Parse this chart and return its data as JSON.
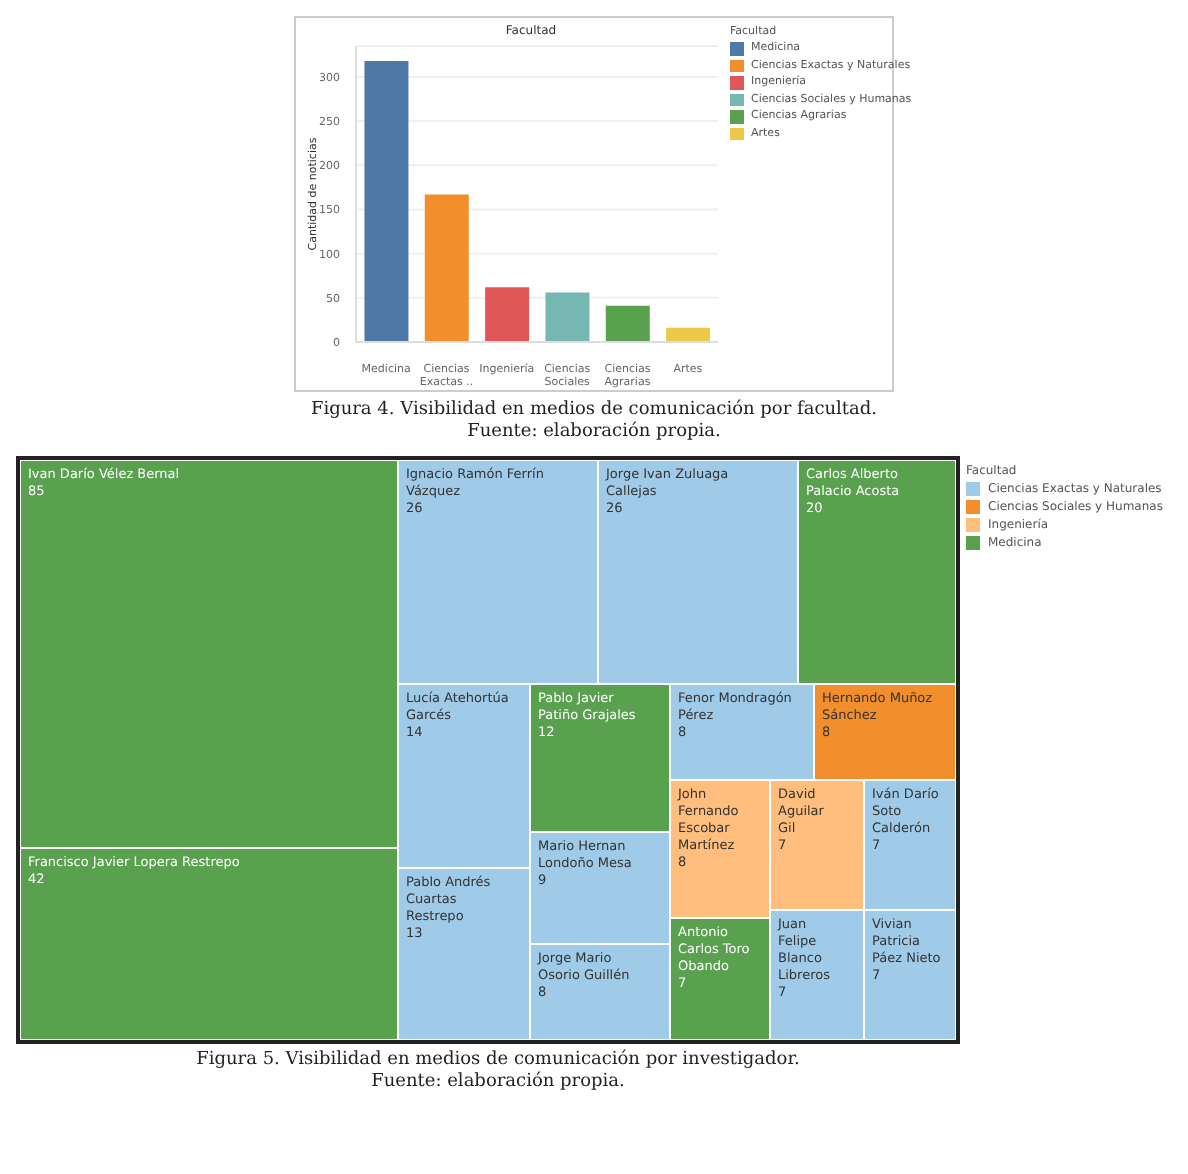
{
  "chart_data": [
    {
      "type": "bar",
      "title": "Facultad",
      "ylabel": "Cantidad de noticias",
      "legend_title": "Facultad",
      "legend": "right",
      "stacked": true,
      "grid": "y",
      "categories": [
        "Medicina",
        "Ciencias Exactas ..",
        "Ingeniería",
        "Ciencias Sociales ..",
        "Ciencias Agrarias",
        "Artes"
      ],
      "series": [
        {
          "name": "Medicina",
          "color": "#4e79a7",
          "values": [
            318,
            null,
            null,
            null,
            null,
            null
          ]
        },
        {
          "name": "Ciencias Exactas y Naturales",
          "color": "#f28e2b",
          "values": [
            null,
            167,
            null,
            null,
            null,
            null
          ]
        },
        {
          "name": "Ingeniería",
          "color": "#e15759",
          "values": [
            null,
            null,
            62,
            null,
            null,
            null
          ]
        },
        {
          "name": "Ciencias Sociales y Humanas",
          "color": "#76b7b2",
          "values": [
            null,
            null,
            null,
            56,
            null,
            null
          ]
        },
        {
          "name": "Ciencias Agrarias",
          "color": "#59a14f",
          "values": [
            null,
            null,
            null,
            null,
            41,
            null
          ]
        },
        {
          "name": "Artes",
          "color": "#edc948",
          "values": [
            null,
            null,
            null,
            null,
            null,
            16
          ]
        }
      ],
      "ylim": [
        0,
        335
      ],
      "yticks": [
        0,
        50,
        100,
        150,
        200,
        250,
        300
      ],
      "annotations": [
        "Figura 4. Visibilidad en medios de comunicación por facultad.",
        "Fuente: elaboración propia."
      ]
    },
    {
      "type": "other",
      "legend_title": "Facultad",
      "legend": "right",
      "data_labels": true,
      "categories": [
        "Ivan Darío Vélez Bernal",
        "Francisco Javier Lopera Restrepo",
        "Ignacio Ramón Ferrín Vázquez",
        "Jorge Ivan Zuluaga Callejas",
        "Carlos Alberto Palacio Acosta",
        "Lucía Atehortúa Garcés",
        "Pablo Andrés Cuartas Restrepo",
        "Pablo Javier Patiño Grajales",
        "Mario Hernan Londoño Mesa",
        "Jorge Mario Osorio Guillén",
        "Fenor Mondragón Pérez",
        "Hernando Muñoz Sánchez",
        "John Fernando Escobar Martínez",
        "Antonio Carlos Toro Obando",
        "David Aguilar Gil",
        "Iván Darío Soto Calderón",
        "Juan Felipe Blanco Libreros",
        "Vivian Patricia Páez Nieto"
      ],
      "series": [
        {
          "name": "Ciencias Exactas y Naturales",
          "color": "#a0cbe8",
          "values": [
            null,
            null,
            26,
            26,
            null,
            14,
            13,
            null,
            9,
            8,
            8,
            null,
            null,
            null,
            null,
            7,
            7,
            7
          ]
        },
        {
          "name": "Ciencias Sociales y Humanas",
          "color": "#f28e2b",
          "values": [
            null,
            null,
            null,
            null,
            null,
            null,
            null,
            null,
            null,
            null,
            null,
            8,
            null,
            null,
            null,
            null,
            null,
            null
          ]
        },
        {
          "name": "Ingeniería",
          "color": "#ffbe7d",
          "values": [
            null,
            null,
            null,
            null,
            null,
            null,
            null,
            null,
            null,
            null,
            null,
            null,
            8,
            null,
            7,
            null,
            null,
            null
          ]
        },
        {
          "name": "Medicina",
          "color": "#59a14f",
          "values": [
            85,
            42,
            null,
            null,
            20,
            null,
            null,
            12,
            null,
            null,
            null,
            null,
            null,
            7,
            null,
            null,
            null,
            null
          ]
        }
      ],
      "annotations": [
        "Figura 5. Visibilidad en medios de comunicación por investigador.",
        "Fuente: elaboración propia."
      ]
    }
  ]
}
